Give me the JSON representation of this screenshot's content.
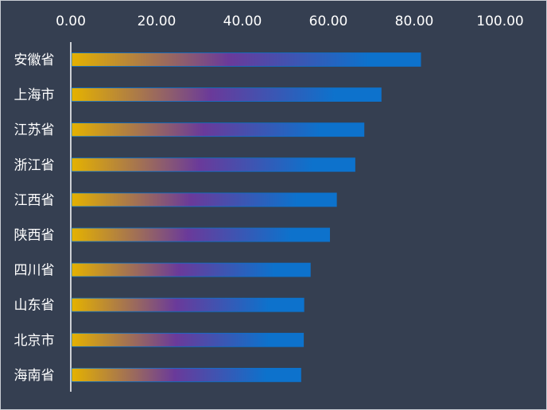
{
  "chart_data": {
    "type": "bar",
    "orientation": "horizontal",
    "categories": [
      "安徽省",
      "上海市",
      "江苏省",
      "浙江省",
      "江西省",
      "陕西省",
      "四川省",
      "山东省",
      "北京市",
      "海南省"
    ],
    "values": [
      81.5,
      72.3,
      68.3,
      66.2,
      61.9,
      60.3,
      55.8,
      54.3,
      54.2,
      53.6
    ],
    "xlim": [
      0,
      100
    ],
    "x_ticks": [
      "0.00",
      "20.00",
      "40.00",
      "60.00",
      "80.00",
      "100.00"
    ],
    "x_axis_position": "top",
    "grid": false,
    "bar_gradient": [
      "#e5b200",
      "#6a3a9a",
      "#0d72cc"
    ],
    "background": "#353f51",
    "title": "",
    "xlabel": "",
    "ylabel": ""
  }
}
